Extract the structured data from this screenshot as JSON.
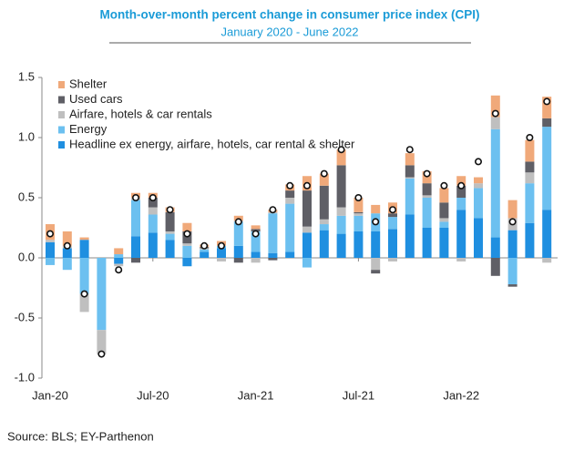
{
  "chart_data": {
    "type": "stacked-bar",
    "title": "Month-over-month percent change in consumer price index (CPI)",
    "subtitle": "January 2020 - June 2022",
    "source": "Source: BLS; EY-Parthenon",
    "categories": [
      "Jan-20",
      null,
      null,
      null,
      null,
      null,
      "Jul-20",
      null,
      null,
      null,
      null,
      null,
      "Jan-21",
      null,
      null,
      null,
      null,
      null,
      "Jul-21",
      null,
      null,
      null,
      null,
      null,
      "Jan-22",
      null,
      null,
      null,
      null,
      null
    ],
    "ylim": [
      -1.0,
      1.5
    ],
    "yticks": [
      1.5,
      {
        "value": 1.0,
        "label": "1.0"
      },
      0.5,
      {
        "value": 0.0,
        "label": "0.0"
      },
      -0.5,
      {
        "value": -1.0,
        "label": "-1.0"
      }
    ],
    "series": [
      {
        "name": "Headline ex energy, airfare, hotels, car rental & shelter",
        "color": "#1f8fe0",
        "values": [
          0.13,
          0.08,
          0.15,
          0,
          -0.05,
          0.18,
          0.21,
          0.15,
          -0.07,
          0.05,
          0.08,
          0.1,
          0.05,
          0.04,
          0.05,
          0.21,
          0.23,
          0.2,
          0.22,
          0.22,
          0.24,
          0.36,
          0.25,
          0.25,
          0.4,
          0.33,
          0.17,
          0.23,
          0.29,
          0.4
        ]
      },
      {
        "name": "Energy",
        "color": "#6cc0f0",
        "values": [
          -0.06,
          -0.1,
          -0.3,
          -0.6,
          0.03,
          0.3,
          0.15,
          0.05,
          0.1,
          0.02,
          0.02,
          0.2,
          0.17,
          0.33,
          0.4,
          -0.08,
          0.05,
          0.15,
          0.13,
          0.15,
          0.1,
          0.3,
          0.25,
          0.05,
          0.1,
          0.25,
          0.9,
          -0.22,
          0.33,
          0.69
        ]
      },
      {
        "name": "Airfare, hotels & car rentals",
        "color": "#bfbfbf",
        "values": [
          0.02,
          0.02,
          -0.15,
          -0.2,
          -0.02,
          0.02,
          0.06,
          0.02,
          0.02,
          0.01,
          -0.03,
          0.01,
          -0.04,
          0.01,
          0.05,
          0.05,
          0.04,
          0.07,
          0.02,
          -0.1,
          -0.03,
          0.01,
          0.02,
          0.03,
          -0.03,
          0.04,
          0.1,
          0.1,
          0.09,
          -0.04
        ]
      },
      {
        "name": "Used cars",
        "color": "#5f5f66",
        "values": [
          0,
          0,
          0,
          0,
          0,
          -0.04,
          0.08,
          0.16,
          0.1,
          0.01,
          0,
          -0.04,
          0.02,
          -0.02,
          0.06,
          0.3,
          0.28,
          0.35,
          0.01,
          -0.03,
          0.03,
          0.1,
          0.1,
          0.13,
          0.1,
          0,
          -0.15,
          -0.02,
          0.09,
          0.07
        ]
      },
      {
        "name": "Shelter",
        "color": "#f0a97a",
        "values": [
          0.13,
          0.12,
          0.02,
          0,
          0.05,
          0.04,
          0.04,
          0.04,
          0.07,
          0.02,
          0.04,
          0.04,
          0.03,
          0.02,
          0.05,
          0.12,
          0.1,
          0.13,
          0.12,
          0.07,
          0.09,
          0.1,
          0.1,
          0.12,
          0.08,
          0.05,
          0.18,
          0.15,
          0.18,
          0.18
        ]
      }
    ],
    "headline": [
      0.2,
      0.1,
      -0.3,
      -0.8,
      -0.1,
      0.5,
      0.5,
      0.4,
      0.2,
      0.1,
      0.1,
      0.3,
      0.2,
      0.4,
      0.6,
      0.6,
      0.7,
      0.9,
      0.5,
      0.3,
      0.4,
      0.9,
      0.7,
      0.6,
      0.6,
      0.8,
      1.2,
      0.3,
      1.0,
      1.3
    ]
  }
}
